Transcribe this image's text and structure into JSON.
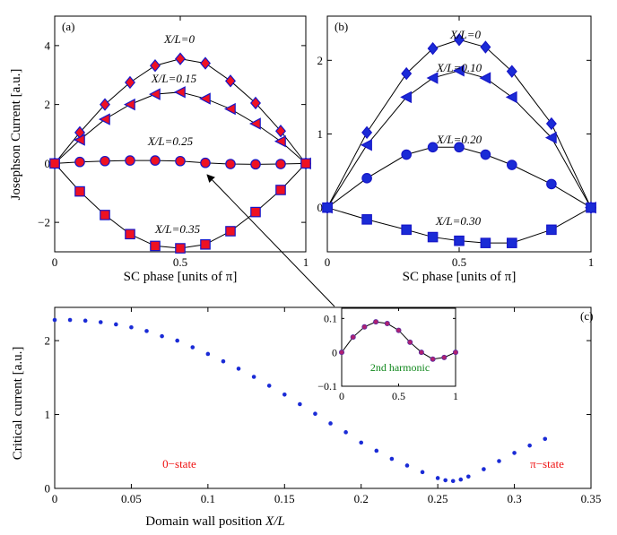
{
  "colors": {
    "marker_fill_a": "#ee1122",
    "marker_fill_b": "#1a2bd6",
    "marker_edge": "#1616c8",
    "line": "#000000",
    "dots": "#1a2bd6",
    "annot_red": "#ee1111",
    "annot_green": "#11881d"
  },
  "chart_data": [
    {
      "type": "line",
      "panel_label": "(a)",
      "xlabel": "SC phase [units of π]",
      "ylabel": "Josephson Current [a.u.]",
      "xlim": [
        0,
        1
      ],
      "ylim": [
        -3,
        5
      ],
      "xticks": [
        0,
        0.5,
        1
      ],
      "yticks": [
        -2,
        0,
        2,
        4
      ],
      "grid": false,
      "series": [
        {
          "name": "X/L=0",
          "marker": "diamond",
          "x": [
            0,
            0.1,
            0.2,
            0.3,
            0.4,
            0.5,
            0.6,
            0.7,
            0.8,
            0.9,
            1
          ],
          "y": [
            0,
            1.05,
            2.0,
            2.75,
            3.32,
            3.55,
            3.4,
            2.8,
            2.05,
            1.1,
            0
          ]
        },
        {
          "name": "X/L=0.15",
          "marker": "triangle-left",
          "x": [
            0,
            0.1,
            0.2,
            0.3,
            0.4,
            0.5,
            0.6,
            0.7,
            0.8,
            0.9,
            1
          ],
          "y": [
            0,
            0.8,
            1.5,
            2.0,
            2.35,
            2.42,
            2.2,
            1.85,
            1.35,
            0.75,
            0
          ]
        },
        {
          "name": "X/L=0.25",
          "marker": "circle",
          "x": [
            0,
            0.1,
            0.2,
            0.3,
            0.4,
            0.5,
            0.6,
            0.7,
            0.8,
            0.9,
            1
          ],
          "y": [
            0,
            0.05,
            0.08,
            0.1,
            0.1,
            0.08,
            0.02,
            -0.02,
            -0.03,
            -0.02,
            0
          ]
        },
        {
          "name": "X/L=0.35",
          "marker": "square",
          "x": [
            0,
            0.1,
            0.2,
            0.3,
            0.4,
            0.5,
            0.6,
            0.7,
            0.8,
            0.9,
            1
          ],
          "y": [
            0,
            -0.95,
            -1.75,
            -2.4,
            -2.8,
            -2.88,
            -2.75,
            -2.3,
            -1.65,
            -0.9,
            0
          ]
        }
      ]
    },
    {
      "type": "line",
      "panel_label": "(b)",
      "xlabel": "SC phase [units of π]",
      "ylabel": "",
      "xlim": [
        0,
        1
      ],
      "ylim": [
        -0.6,
        2.6
      ],
      "xticks": [
        0,
        0.5,
        1
      ],
      "yticks": [
        0,
        1,
        2
      ],
      "grid": false,
      "series": [
        {
          "name": "X/L=0",
          "marker": "diamond",
          "x": [
            0,
            0.15,
            0.3,
            0.4,
            0.5,
            0.6,
            0.7,
            0.85,
            1
          ],
          "y": [
            0,
            1.02,
            1.82,
            2.16,
            2.28,
            2.18,
            1.85,
            1.14,
            0
          ]
        },
        {
          "name": "X/L=0.10",
          "marker": "triangle-left",
          "x": [
            0,
            0.15,
            0.3,
            0.4,
            0.5,
            0.6,
            0.7,
            0.85,
            1
          ],
          "y": [
            0,
            0.85,
            1.5,
            1.76,
            1.86,
            1.76,
            1.5,
            0.95,
            0
          ]
        },
        {
          "name": "X/L=0.20",
          "marker": "circle",
          "x": [
            0,
            0.15,
            0.3,
            0.4,
            0.5,
            0.6,
            0.7,
            0.85,
            1
          ],
          "y": [
            0,
            0.4,
            0.72,
            0.82,
            0.82,
            0.72,
            0.58,
            0.32,
            0
          ]
        },
        {
          "name": "X/L=0.30",
          "marker": "square",
          "x": [
            0,
            0.15,
            0.3,
            0.4,
            0.5,
            0.6,
            0.7,
            0.85,
            1
          ],
          "y": [
            0,
            -0.16,
            -0.3,
            -0.4,
            -0.45,
            -0.48,
            -0.48,
            -0.3,
            0
          ]
        }
      ]
    },
    {
      "type": "scatter",
      "panel_label": "(c)",
      "xlabel": "Domain wall position ",
      "xlabel_var": "X/L",
      "ylabel": "Critical current [a.u.]",
      "xlim": [
        0,
        0.35
      ],
      "ylim": [
        0,
        2.45
      ],
      "xticks": [
        0,
        0.05,
        0.1,
        0.15,
        0.2,
        0.25,
        0.3,
        0.35
      ],
      "yticks": [
        0,
        1,
        2
      ],
      "grid": false,
      "annotations": [
        "0−state",
        "π−state"
      ],
      "series": [
        {
          "name": "",
          "x": [
            0,
            0.01,
            0.02,
            0.03,
            0.04,
            0.05,
            0.06,
            0.07,
            0.08,
            0.09,
            0.1,
            0.11,
            0.12,
            0.13,
            0.14,
            0.15,
            0.16,
            0.17,
            0.18,
            0.19,
            0.2,
            0.21,
            0.22,
            0.23,
            0.24,
            0.25,
            0.255,
            0.26,
            0.265,
            0.27,
            0.28,
            0.29,
            0.3,
            0.31,
            0.32
          ],
          "y": [
            2.28,
            2.28,
            2.27,
            2.25,
            2.22,
            2.18,
            2.13,
            2.06,
            2.0,
            1.91,
            1.82,
            1.72,
            1.62,
            1.51,
            1.39,
            1.27,
            1.14,
            1.01,
            0.88,
            0.76,
            0.62,
            0.51,
            0.4,
            0.31,
            0.22,
            0.14,
            0.11,
            0.1,
            0.12,
            0.16,
            0.26,
            0.37,
            0.48,
            0.58,
            0.67
          ]
        }
      ]
    },
    {
      "type": "line",
      "panel_label": "",
      "title": "2nd harmonic",
      "xlim": [
        0,
        1
      ],
      "ylim": [
        -0.1,
        0.13
      ],
      "xticks": [
        0,
        0.5,
        1
      ],
      "yticks": [
        -0.1,
        0,
        0.1
      ],
      "grid": false,
      "series": [
        {
          "name": "",
          "x": [
            0,
            0.1,
            0.2,
            0.3,
            0.4,
            0.5,
            0.6,
            0.7,
            0.8,
            0.9,
            1
          ],
          "y": [
            0,
            0.045,
            0.075,
            0.09,
            0.085,
            0.065,
            0.03,
            0,
            -0.02,
            -0.015,
            0
          ]
        }
      ]
    }
  ]
}
